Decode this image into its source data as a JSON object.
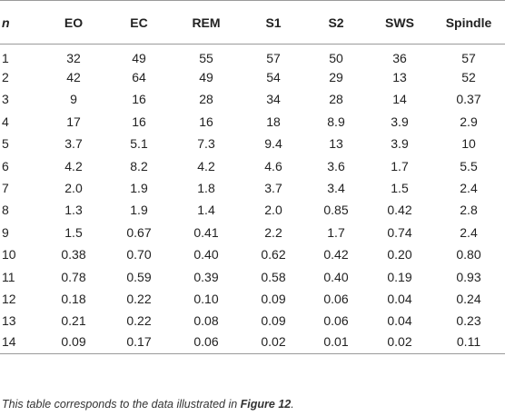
{
  "table": {
    "headers": [
      "n",
      "EO",
      "EC",
      "REM",
      "S1",
      "S2",
      "SWS",
      "Spindle"
    ],
    "rows": [
      [
        "1",
        "32",
        "49",
        "55",
        "57",
        "50",
        "36",
        "57"
      ],
      [
        "2",
        "42",
        "64",
        "49",
        "54",
        "29",
        "13",
        "52"
      ],
      [
        "3",
        "9",
        "16",
        "28",
        "34",
        "28",
        "14",
        "0.37"
      ],
      [
        "4",
        "17",
        "16",
        "16",
        "18",
        "8.9",
        "3.9",
        "2.9"
      ],
      [
        "5",
        "3.7",
        "5.1",
        "7.3",
        "9.4",
        "13",
        "3.9",
        "10"
      ],
      [
        "6",
        "4.2",
        "8.2",
        "4.2",
        "4.6",
        "3.6",
        "1.7",
        "5.5"
      ],
      [
        "7",
        "2.0",
        "1.9",
        "1.8",
        "3.7",
        "3.4",
        "1.5",
        "2.4"
      ],
      [
        "8",
        "1.3",
        "1.9",
        "1.4",
        "2.0",
        "0.85",
        "0.42",
        "2.8"
      ],
      [
        "9",
        "1.5",
        "0.67",
        "0.41",
        "2.2",
        "1.7",
        "0.74",
        "2.4"
      ],
      [
        "10",
        "0.38",
        "0.70",
        "0.40",
        "0.62",
        "0.42",
        "0.20",
        "0.80"
      ],
      [
        "11",
        "0.78",
        "0.59",
        "0.39",
        "0.58",
        "0.40",
        "0.19",
        "0.93"
      ],
      [
        "12",
        "0.18",
        "0.22",
        "0.10",
        "0.09",
        "0.06",
        "0.04",
        "0.24"
      ],
      [
        "13",
        "0.21",
        "0.22",
        "0.08",
        "0.09",
        "0.06",
        "0.04",
        "0.23"
      ],
      [
        "14",
        "0.09",
        "0.17",
        "0.06",
        "0.02",
        "0.01",
        "0.02",
        "0.11"
      ]
    ]
  },
  "caption": {
    "prefix": "This table corresponds to the data illustrated in ",
    "ref": "Figure 12",
    "suffix": "."
  }
}
